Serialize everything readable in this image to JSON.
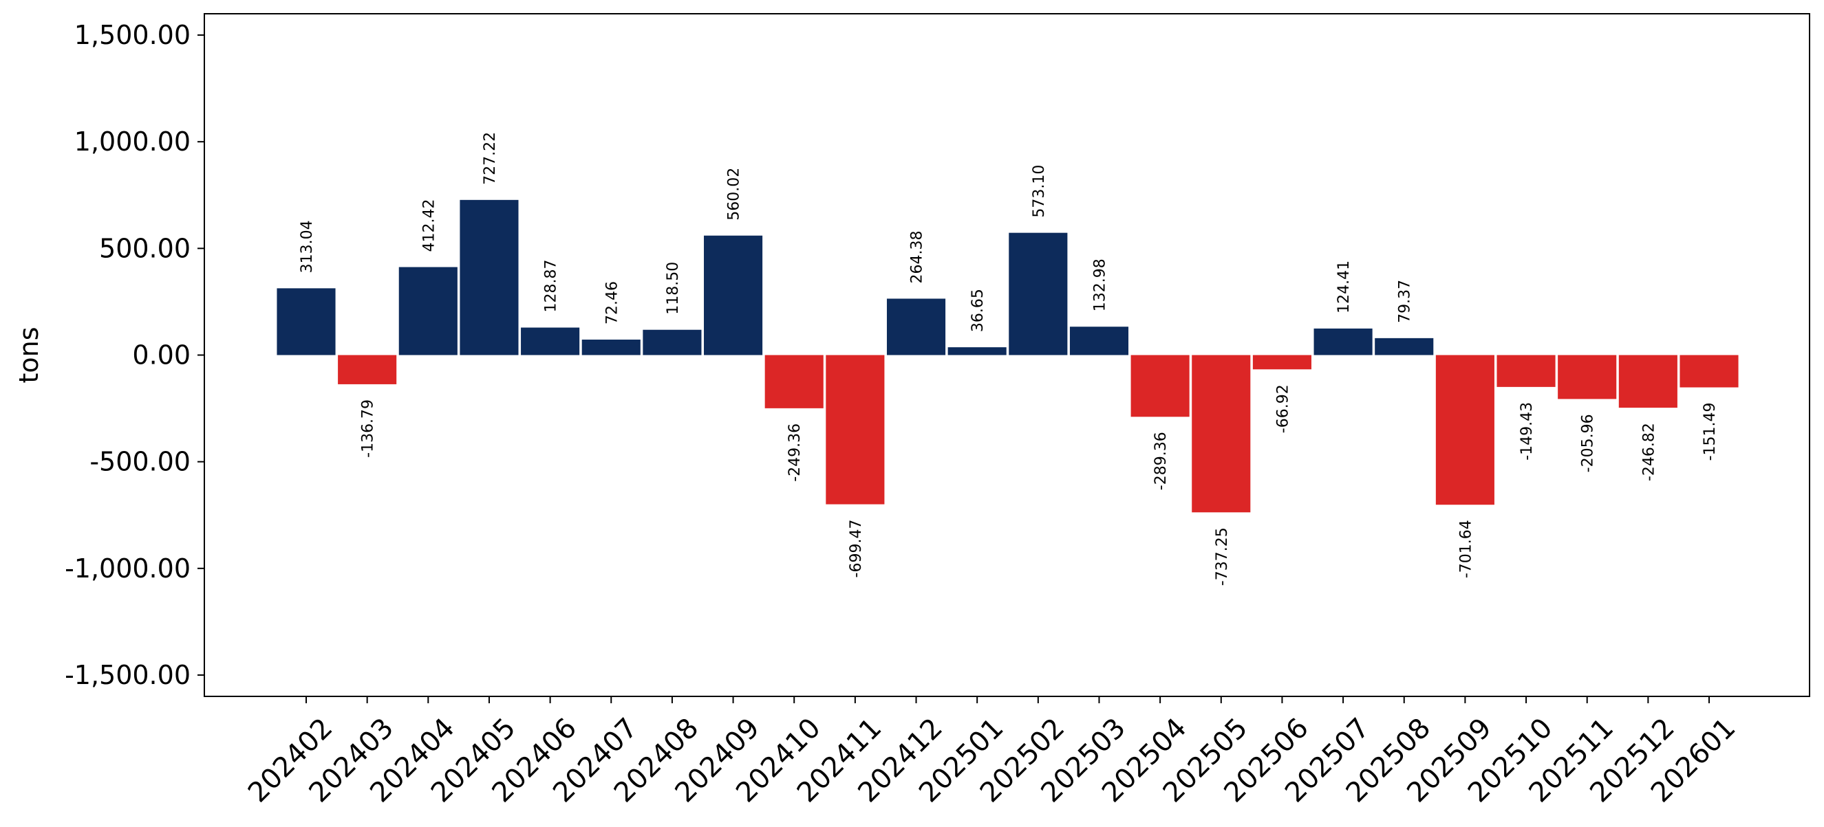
{
  "chart_data": {
    "type": "bar",
    "title": "",
    "xlabel": "",
    "ylabel": "tons",
    "ylim": [
      -1600,
      1600
    ],
    "yticks": [
      -1500,
      -1000,
      -500,
      0,
      500,
      1000,
      1500
    ],
    "ytick_labels": [
      "-1,500.00",
      "-1,000.00",
      "-500.00",
      "0.00",
      "500.00",
      "1,000.00",
      "1,500.00"
    ],
    "grid": false,
    "legend": "none",
    "colors": {
      "positive": "#0d2b5b",
      "negative": "#dc2626",
      "axis": "#000000"
    },
    "categories": [
      "202402",
      "202403",
      "202404",
      "202405",
      "202406",
      "202407",
      "202408",
      "202409",
      "202410",
      "202411",
      "202412",
      "202501",
      "202502",
      "202503",
      "202504",
      "202505",
      "202506",
      "202507",
      "202508",
      "202509",
      "202510",
      "202511",
      "202512",
      "202601"
    ],
    "values": [
      313.04,
      -136.79,
      412.42,
      727.22,
      128.87,
      72.46,
      118.5,
      560.02,
      -249.36,
      -699.47,
      264.38,
      36.65,
      573.1,
      132.98,
      -289.36,
      -737.25,
      -66.92,
      124.41,
      79.37,
      -701.64,
      -149.43,
      -205.96,
      -246.82,
      -151.49
    ],
    "data_labels": [
      "313.04",
      "-136.79",
      "412.42",
      "727.22",
      "128.87",
      "72.46",
      "118.50",
      "560.02",
      "-249.36",
      "-699.47",
      "264.38",
      "36.65",
      "573.10",
      "132.98",
      "-289.36",
      "-737.25",
      "-66.92",
      "124.41",
      "79.37",
      "-701.64",
      "-149.43",
      "-205.96",
      "-246.82",
      "-151.49"
    ]
  }
}
